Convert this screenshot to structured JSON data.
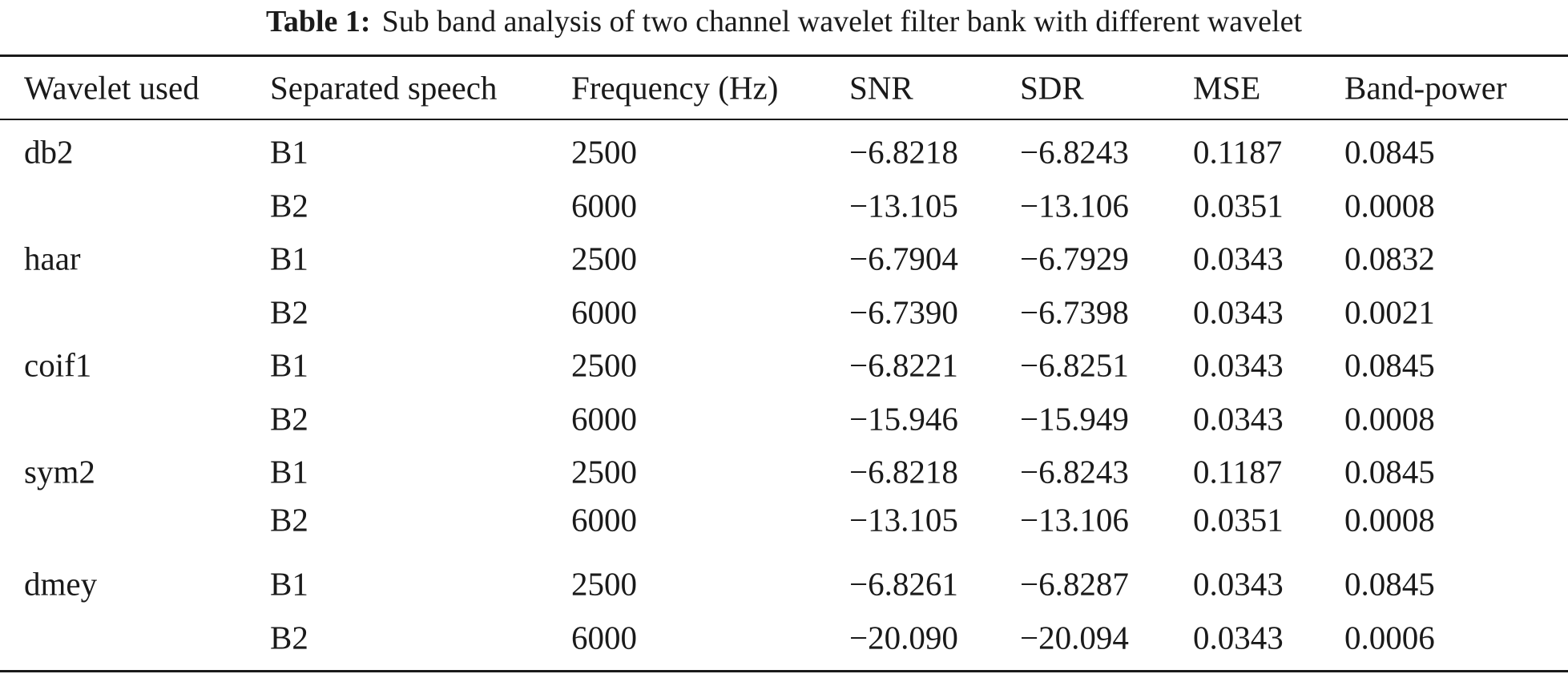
{
  "caption": {
    "label": "Table 1:",
    "text": "Sub band analysis of two channel wavelet filter bank with different wavelet"
  },
  "table": {
    "headers": [
      "Wavelet used",
      "Separated speech",
      "Frequency (Hz)",
      "SNR",
      "SDR",
      "MSE",
      "Band-power"
    ],
    "rows": [
      [
        "db2",
        "B1",
        "2500",
        "−6.8218",
        "−6.8243",
        "0.1187",
        "0.0845"
      ],
      [
        "",
        "B2",
        "6000",
        "−13.105",
        "−13.106",
        "0.0351",
        "0.0008"
      ],
      [
        "haar",
        "B1",
        "2500",
        "−6.7904",
        "−6.7929",
        "0.0343",
        "0.0832"
      ],
      [
        "",
        "B2",
        "6000",
        "−6.7390",
        "−6.7398",
        "0.0343",
        "0.0021"
      ],
      [
        "coif1",
        "B1",
        "2500",
        "−6.8221",
        "−6.8251",
        "0.0343",
        "0.0845"
      ],
      [
        "",
        "B2",
        "6000",
        "−15.946",
        "−15.949",
        "0.0343",
        "0.0008"
      ],
      [
        "sym2",
        "B1",
        "2500",
        "−6.8218",
        "−6.8243",
        "0.1187",
        "0.0845"
      ],
      [
        "",
        "B2",
        "6000",
        "−13.105",
        "−13.106",
        "0.0351",
        "0.0008"
      ],
      [
        "dmey",
        "B1",
        "2500",
        "−6.8261",
        "−6.8287",
        "0.0343",
        "0.0845"
      ],
      [
        "",
        "B2",
        "6000",
        "−20.090",
        "−20.094",
        "0.0343",
        "0.0006"
      ]
    ]
  }
}
